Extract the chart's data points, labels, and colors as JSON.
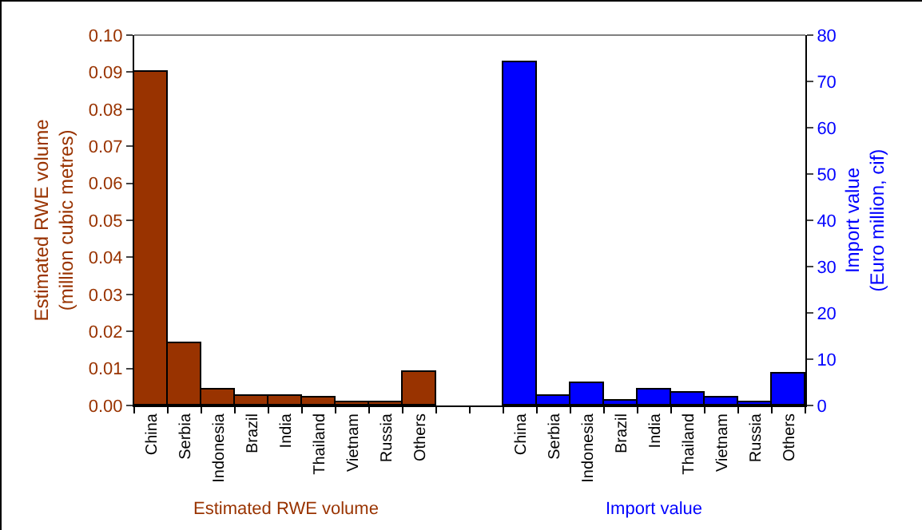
{
  "chart_data": {
    "type": "bar",
    "ylabel": "Estimated RWE volume\n(million cubic metres)",
    "y2label": "Import value\n(Euro million, cif)",
    "categories": [
      "China",
      "Serbia",
      "Indonesia",
      "Brazil",
      "India",
      "Thailand",
      "Vietnam",
      "Russia",
      "Others",
      null,
      null,
      "China",
      "Serbia",
      "Indonesia",
      "Brazil",
      "India",
      "Thailand",
      "Vietnam",
      "Russia",
      "Others"
    ],
    "series": [
      {
        "name": "Estimated RWE volume",
        "color": "#993300",
        "values": [
          0.09,
          0.017,
          0.0045,
          0.0025,
          0.0025,
          0.002,
          0.001,
          0.001,
          0.009,
          null,
          null,
          null,
          null,
          null,
          null,
          null,
          null,
          null,
          null,
          null
        ]
      },
      {
        "name": "Import value",
        "color": "#0000ff",
        "axis": "y2",
        "values": [
          null,
          null,
          null,
          null,
          null,
          null,
          null,
          null,
          null,
          null,
          null,
          74,
          2.1,
          4.8,
          1.0,
          3.4,
          2.8,
          1.7,
          0.7,
          6.9
        ]
      }
    ],
    "ylim": [
      0,
      0.1
    ],
    "yticks": [
      {
        "value": 0,
        "label": "0.00"
      },
      {
        "value": 0.01,
        "label": "0.01"
      },
      {
        "value": 0.02,
        "label": "0.02"
      },
      {
        "value": 0.03,
        "label": "0.03"
      },
      {
        "value": 0.04,
        "label": "0.04"
      },
      {
        "value": 0.05,
        "label": "0.05"
      },
      {
        "value": 0.06,
        "label": "0.06"
      },
      {
        "value": 0.07,
        "label": "0.07"
      },
      {
        "value": 0.08,
        "label": "0.08"
      },
      {
        "value": 0.09,
        "label": "0.09"
      },
      {
        "value": 0.1,
        "label": "0.10"
      }
    ],
    "y2lim": [
      0,
      80
    ],
    "y2ticks": [
      0,
      10,
      20,
      30,
      40,
      50,
      60,
      70,
      80
    ],
    "grid": false,
    "legend": false
  }
}
